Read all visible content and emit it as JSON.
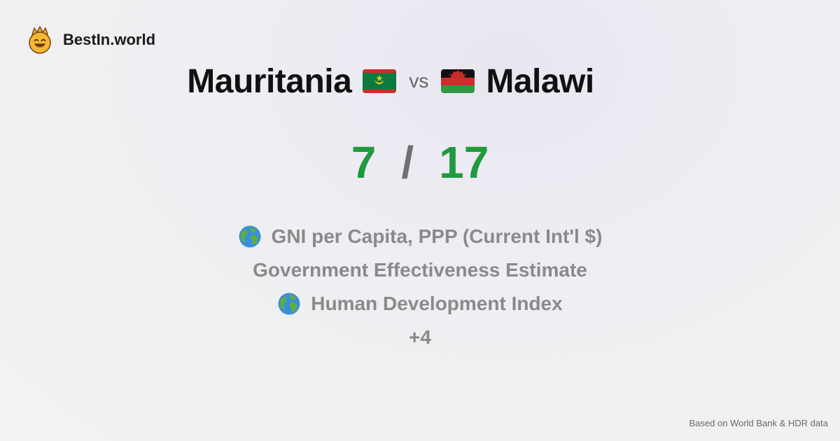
{
  "brand": {
    "name": "BestIn.world",
    "logo_icon": "crown-smiley-icon"
  },
  "title": {
    "country_a": "Mauritania",
    "country_a_flag": "mauritania-flag-icon",
    "vs": "vs",
    "country_b": "Malawi",
    "country_b_flag": "malawi-flag-icon"
  },
  "score": {
    "a": "7",
    "separator": "/",
    "b": "17",
    "color": "#1f9a3e"
  },
  "metrics": [
    {
      "label": "GNI per Capita, PPP (Current Int'l $)",
      "icon": "globe-icon"
    },
    {
      "label": "Government Effectiveness Estimate",
      "icon": ""
    },
    {
      "label": "Human Development Index",
      "icon": "globe-icon"
    },
    {
      "label": "+4",
      "icon": ""
    }
  ],
  "footer": {
    "source": "Based on World Bank & HDR data"
  }
}
